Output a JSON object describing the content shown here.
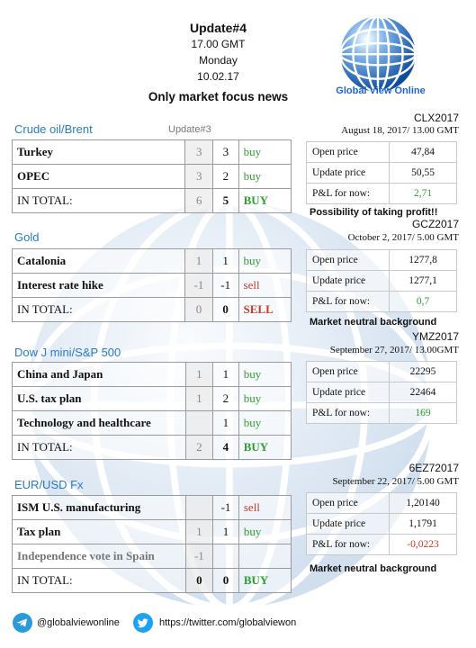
{
  "header": {
    "update": "Update#4",
    "time": "17.00 GMT",
    "day": "Monday",
    "date": "10.02.17",
    "focus": "Only market focus news"
  },
  "logo": {
    "text": "Global View Online"
  },
  "colors": {
    "buy": "#2e9e2e",
    "sell": "#c43b2b",
    "section_title": "#2b7bc4",
    "brand": "#1e66c9"
  },
  "sections": [
    {
      "title": "Crude oil/Brent",
      "subtitle": "Update#3",
      "rows": [
        {
          "name": "Turkey",
          "prev": "3",
          "cur": "3",
          "signal": "buy"
        },
        {
          "name": "OPEC",
          "prev": "3",
          "cur": "2",
          "signal": "buy"
        },
        {
          "name": "IN TOTAL:",
          "prev": "6",
          "cur": "5",
          "signal": "BUY"
        }
      ]
    },
    {
      "title": "Gold",
      "rows": [
        {
          "name": "Catalonia",
          "prev": "1",
          "cur": "1",
          "signal": "buy"
        },
        {
          "name": "Interest rate hike",
          "prev": "-1",
          "cur": "-1",
          "signal": "sell"
        },
        {
          "name": "IN TOTAL:",
          "prev": "0",
          "cur": "0",
          "signal": "SELL"
        }
      ]
    },
    {
      "title": "Dow J mini/S&P 500",
      "rows": [
        {
          "name": "China and Japan",
          "prev": "1",
          "cur": "1",
          "signal": "buy"
        },
        {
          "name": "U.S. tax plan",
          "prev": "1",
          "cur": "2",
          "signal": "buy"
        },
        {
          "name": "Technology and healthcare",
          "prev": "",
          "cur": "1",
          "signal": "buy"
        },
        {
          "name": "IN TOTAL:",
          "prev": "2",
          "cur": "4",
          "signal": "BUY"
        }
      ]
    },
    {
      "title": "EUR/USD Fx",
      "rows": [
        {
          "name": "ISM U.S. manufacturing",
          "prev": "",
          "cur": "-1",
          "signal": "sell"
        },
        {
          "name": "Tax plan",
          "prev": "1",
          "cur": "1",
          "signal": "buy"
        },
        {
          "name": "Independence vote in Spain",
          "prev": "-1",
          "cur": "",
          "signal": ""
        },
        {
          "name": "IN TOTAL:",
          "prev": "0",
          "cur": "0",
          "signal": "BUY"
        }
      ]
    }
  ],
  "contracts": [
    {
      "ticker": "CLX2017",
      "date": "August 18, 2017/ 13.00 GMT",
      "open_label": "Open price",
      "open": "47,84",
      "update_label": "Update price",
      "update": "50,55",
      "pl_label": "P&L for now:",
      "pl": "2,71",
      "note": "Possibility of taking profit!!"
    },
    {
      "ticker": "GCZ2017",
      "date": "October 2, 2017/ 5.00 GMT",
      "open_label": "Open price",
      "open": "1277,8",
      "update_label": "Update price",
      "update": "1277,1",
      "pl_label": "P&L for now:",
      "pl": "0,7",
      "note": "Market neutral background"
    },
    {
      "ticker": "YMZ2017",
      "date": "September 27, 2017/ 13.00GMT",
      "open_label": "Open price",
      "open": "22295",
      "update_label": "Update price",
      "update": "22464",
      "pl_label": "P&L for now:",
      "pl": "169",
      "note": ""
    },
    {
      "ticker": "6EZ72017",
      "date": "September 22, 2017/ 5.00 GMT",
      "open_label": "Open price",
      "open": "1,20140",
      "update_label": "Update price",
      "update": "1,1791",
      "pl_label": "P&L for now:",
      "pl": "-0,0223",
      "note": "Market neutral background"
    }
  ],
  "footer": {
    "telegram_icon": "telegram-icon",
    "telegram": "@globalviewonline",
    "twitter_icon": "twitter-icon",
    "twitter": "https://twitter.com/globalviewon"
  }
}
